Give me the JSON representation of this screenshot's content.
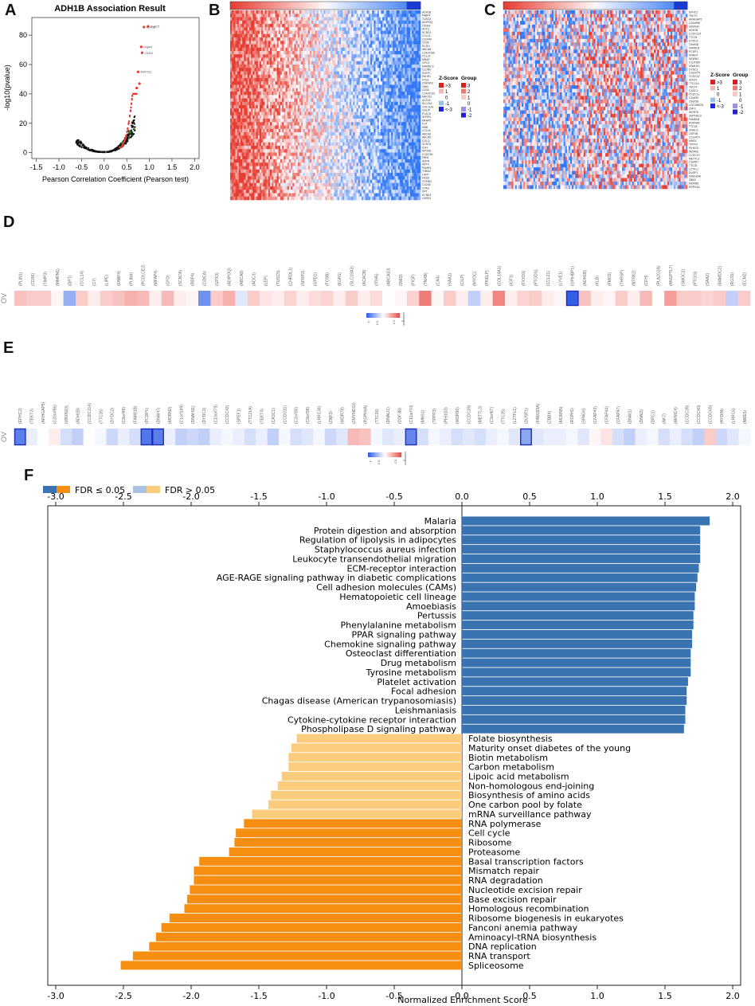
{
  "panels": {
    "a": "A",
    "b": "B",
    "c": "C",
    "d": "D",
    "e": "E",
    "f": "F"
  },
  "colors": {
    "red": "#e8332a",
    "blue": "#1a3bd6",
    "heat_red": "#e74b3c",
    "heat_blue": "#3b6fd4",
    "fdr_sig_pos": "#3a73b1",
    "fdr_sig_neg": "#f68e12",
    "fdr_ns_pos": "#a7c1e0",
    "fdr_ns_neg": "#fbcc7d"
  },
  "volcano": {
    "title": "ADH1B Association Result",
    "xlabel": "Pearson Correlation Coefficient (Pearson test)",
    "ylabel": "-log10(pvalue)",
    "xticks": [
      "-1.5",
      "-1.0",
      "-0.5",
      "0.0",
      "0.5",
      "1.0",
      "1.5",
      "2.0"
    ],
    "yticks": [
      "0",
      "20",
      "40",
      "60",
      "80"
    ],
    "point_labels": [
      "ADH1B",
      "TUSC5",
      "FABP4",
      "CIDEA",
      "ADIPOQ"
    ]
  },
  "heatmap_b": {
    "genes": [
      "ADH1B",
      "FABP4",
      "TUSC5",
      "ADIPOQ",
      "CIDEA",
      "AOC3",
      "SCRG1",
      "CCL14",
      "C2orf40",
      "CD36",
      "PCDH",
      "ABCA8",
      "C14orf180",
      "CCL21",
      "MRAP",
      "GPC3",
      "MAMDC2",
      "CLDN5",
      "SVEP1",
      "PAHR1",
      "FXS1",
      "CNKSR3",
      "OMD",
      "CD34",
      "C14orf132",
      "MEOX2",
      "ACTA2",
      "SLC2A4",
      "COL11A1",
      "GSLIP",
      "PLAC8",
      "SFRP4",
      "MFAP5",
      "FLR",
      "HBB",
      "CCL18",
      "ABCA6",
      "ABCA9",
      "COLQ",
      "SCN7A",
      "IGF1",
      "APOA5",
      "CCDC80",
      "FBN1",
      "ASPN",
      "ART4",
      "PAMR1",
      "THBS2",
      "LHFP",
      "FRZB",
      "TGFBI3",
      "CD248",
      "CPA3",
      "DPT",
      "KCNE4",
      "LMOD1"
    ],
    "legend_zscore_title": "Z-Score",
    "legend_group_title": "Group",
    "legend_zscore": [
      ">3",
      "1",
      "0",
      "-1",
      "<-3"
    ],
    "legend_group": [
      "3",
      "2",
      "1",
      "0",
      "-1",
      "-2"
    ]
  },
  "heatmap_c": {
    "genes": [
      "EFHC2",
      "TEKT2",
      "ARHGAP5",
      "C20orf96",
      "UBXN10",
      "ADH1B",
      "CCDC114",
      "TTC26",
      "DYDC2",
      "C9orf48",
      "FAM81B",
      "PCDP1",
      "DNAH7",
      "MORN2",
      "C1orf189",
      "DNAH11",
      "DYDC1",
      "C10orf79",
      "CCDC42",
      "SPEF1",
      "TTC21A",
      "TEKT4",
      "CASC1",
      "CCDC11",
      "C2orf30",
      "C9orf38",
      "LOC285076",
      "ZNF3",
      "WDR78",
      "ZMYND10",
      "FAM81B",
      "RSPH4A",
      "TTC18",
      "DNALI1",
      "ODF3B",
      "C11orf70",
      "MNS1",
      "TPPP3",
      "PIH1D3",
      "WDR96",
      "CCDC19",
      "METTL3",
      "C3orf67",
      "TTC25",
      "LZTFL1",
      "DUSP1",
      "FAM183A",
      "ZBBX",
      "MORN5",
      "RSPH1A"
    ],
    "legend_zscore_title": "Z-Score",
    "legend_group_title": "Group",
    "legend_zscore": [
      ">3",
      "1",
      "0",
      "-1",
      "<-3"
    ],
    "legend_group": [
      "3",
      "2",
      "1",
      "0",
      "-1",
      "-2"
    ]
  },
  "strip_d": {
    "row_label": "OV",
    "legend_title": "correlation",
    "legend_ticks": [
      "-1",
      "-0.5",
      "0",
      "0.5",
      "1"
    ],
    "genes": [
      "PLIN1",
      "CD36",
      "TIMP3",
      "MMRN1",
      "DPT",
      "CCL14",
      "C7",
      "LIPE",
      "FABP4",
      "PLIN4",
      "PCOLCE2",
      "MFAP4",
      "CFD",
      "SCN7A",
      "RBP4",
      "CIDEA",
      "GPX3",
      "ADIPOQ",
      "ABCA8",
      "AOC3",
      "LEP",
      "TUSC5",
      "CHRDL1",
      "SFRP2",
      "GPD1",
      "FOSB",
      "EGR1",
      "SLC19A3",
      "ACACB",
      "ITIH5",
      "ABCA10",
      "DMD",
      "FIGF",
      "TNXB",
      "CA4",
      "SAA1",
      "CILP",
      "MYOC",
      "PRELP",
      "COL14A1",
      "IGF1",
      "FXYD1",
      "PTGDS",
      "CCL21",
      "LYVE1",
      "GPIHBP1",
      "ADH1B",
      "KLB",
      "FMO2",
      "THRSP",
      "NTRK2",
      "CFH",
      "PLA2G2A",
      "ANGPTL7",
      "SMOC2",
      "PTGIS",
      "SAA2",
      "MAMDC2",
      "RGS5",
      "ECM2"
    ],
    "values": [
      0.35,
      0.3,
      0.3,
      0.05,
      -0.5,
      0.3,
      0.1,
      0.3,
      0.35,
      0.45,
      0.4,
      0.1,
      0.4,
      0.1,
      0.05,
      -0.7,
      0.3,
      0.45,
      -0.15,
      0.3,
      0.15,
      0.1,
      0.25,
      0.1,
      0.2,
      0.25,
      0.1,
      0.3,
      0.1,
      0.2,
      0.0,
      0.05,
      0.25,
      0.75,
      0.05,
      0.3,
      0.1,
      -0.3,
      0.1,
      0.7,
      0.1,
      0.25,
      0.3,
      0.1,
      0.05,
      -1.0,
      0.35,
      0.1,
      0.05,
      0.3,
      0.1,
      0.4,
      0.0,
      0.55,
      0.3,
      0.3,
      0.25,
      0.3,
      -0.3,
      0.3
    ],
    "highlighted_index": 45
  },
  "strip_e": {
    "row_label": "OV",
    "legend_title": "correlation",
    "legend_ticks": [
      "-1",
      "-0.5",
      "0",
      "0.5",
      "1"
    ],
    "genes": [
      "EFHC2",
      "TEKT2",
      "ARHGAP5",
      "C20orf96",
      "UBXN10",
      "ADH1B",
      "CCDC114",
      "TTC26",
      "DYDC2",
      "C9orf48",
      "FAM81B",
      "PCDP1",
      "DNAH7",
      "MORN2",
      "C1orf189",
      "DNAH11",
      "DYDC1",
      "C10orf79",
      "CCDC42",
      "SPEF1",
      "TTC21A",
      "TEKT4",
      "CASC1",
      "CCDC11",
      "C2orf30",
      "C9orf38",
      "LRRC34",
      "ZNF3",
      "WDR78",
      "ZMYND10",
      "RSPH4A",
      "TTC18",
      "DNALI1",
      "ODF3B",
      "C11orf70",
      "MNS1",
      "TPPP3",
      "PIH1D3",
      "WDR96",
      "CCDC19",
      "METTL3",
      "C3orf67",
      "TTC25",
      "LZTFL1",
      "DUSP1",
      "FAM183A",
      "ZBBX",
      "MORN5",
      "RSPH1",
      "SPAG6",
      "CFAP43",
      "CFAP44",
      "CFAP47",
      "DNAI1",
      "DNAI2",
      "DRC1",
      "AK7",
      "ARMC4",
      "CCDC39",
      "CCDC40",
      "CCDC65",
      "HYDIN",
      "LRRC6",
      "NME5"
    ],
    "values": [
      -0.8,
      -0.1,
      0.0,
      0.1,
      -0.2,
      -0.3,
      0.0,
      -0.05,
      -0.25,
      -0.1,
      -0.2,
      -0.85,
      -0.8,
      -0.1,
      -0.3,
      -0.25,
      -0.3,
      -0.1,
      -0.05,
      -0.1,
      -0.2,
      -0.1,
      -0.3,
      -0.05,
      -0.2,
      -0.15,
      -0.05,
      -0.25,
      -0.15,
      0.4,
      0.35,
      -0.05,
      -0.15,
      -0.1,
      -0.75,
      -0.2,
      -0.05,
      -0.1,
      -0.2,
      -0.15,
      -0.2,
      -0.1,
      -0.05,
      -0.15,
      -0.55,
      -0.15,
      -0.1,
      -0.1,
      -0.05,
      -0.15,
      0.05,
      0.15,
      -0.2,
      -0.3,
      -0.1,
      -0.05,
      -0.2,
      -0.1,
      -0.2,
      -0.3,
      0.3,
      -0.25,
      -0.15,
      -0.05
    ],
    "highlighted_indices": [
      0,
      11,
      12,
      34,
      44
    ]
  },
  "chart_data": {
    "type": "bar",
    "orientation": "horizontal",
    "title": "",
    "xlabel": "Normalized Enrichment Score",
    "ylabel": "",
    "xlim": [
      -3.0,
      2.0
    ],
    "xticks": [
      "-3.0",
      "-2.5",
      "-2.0",
      "-1.5",
      "-1.0",
      "-0.5",
      "0.0",
      "0.5",
      "1.0",
      "1.5",
      "2.0"
    ],
    "legend": [
      {
        "label": "FDR ≤ 0.05",
        "colors": [
          "#3a73b1",
          "#f68e12"
        ]
      },
      {
        "label": "FDR > 0.05",
        "colors": [
          "#a7c1e0",
          "#fbcc7d"
        ]
      }
    ],
    "categories": [
      "Malaria",
      "Protein digestion and absorption",
      "Regulation of lipolysis in adipocytes",
      "Staphylococcus aureus infection",
      "Leukocyte transendothelial migration",
      "ECM-receptor interaction",
      "AGE-RAGE signaling pathway in diabetic complications",
      "Cell adhesion molecules (CAMs)",
      "Hematopoietic cell lineage",
      "Amoebiasis",
      "Pertussis",
      "Phenylalanine metabolism",
      "PPAR signaling pathway",
      "Chemokine signaling pathway",
      "Osteoclast differentiation",
      "Drug metabolism",
      "Tyrosine metabolism",
      "Platelet activation",
      "Focal adhesion",
      "Chagas disease (American trypanosomiasis)",
      "Leishmaniasis",
      "Cytokine-cytokine receptor interaction",
      "Phospholipase D signaling pathway",
      "Folate biosynthesis",
      "Maturity onset diabetes of the young",
      "Biotin metabolism",
      "Carbon metabolism",
      "Lipoic acid metabolism",
      "Non-homologous end-joining",
      "Biosynthesis of amino acids",
      "One carbon pool by folate",
      "mRNA surveillance pathway",
      "RNA polymerase",
      "Cell cycle",
      "Ribosome",
      "Proteasome",
      "Basal transcription factors",
      "Mismatch repair",
      "RNA degradation",
      "Nucleotide excision repair",
      "Base excision repair",
      "Homologous recombination",
      "Ribosome biogenesis in eukaryotes",
      "Fanconi anemia pathway",
      "Aminoacyl-tRNA biosynthesis",
      "DNA replication",
      "RNA transport",
      "Spliceosome"
    ],
    "values": [
      1.83,
      1.76,
      1.76,
      1.76,
      1.76,
      1.75,
      1.74,
      1.73,
      1.72,
      1.72,
      1.71,
      1.71,
      1.7,
      1.7,
      1.69,
      1.69,
      1.69,
      1.67,
      1.66,
      1.66,
      1.65,
      1.65,
      1.64,
      -1.22,
      -1.26,
      -1.28,
      -1.28,
      -1.33,
      -1.36,
      -1.41,
      -1.43,
      -1.55,
      -1.61,
      -1.67,
      -1.68,
      -1.72,
      -1.94,
      -1.98,
      -1.98,
      -2.01,
      -2.03,
      -2.05,
      -2.16,
      -2.22,
      -2.26,
      -2.31,
      -2.43,
      -2.52
    ],
    "fdr_significant": [
      true,
      true,
      true,
      true,
      true,
      true,
      true,
      true,
      true,
      true,
      true,
      true,
      true,
      true,
      true,
      true,
      true,
      true,
      true,
      true,
      true,
      true,
      true,
      false,
      false,
      false,
      false,
      false,
      false,
      false,
      false,
      false,
      true,
      true,
      true,
      true,
      true,
      true,
      true,
      true,
      true,
      true,
      true,
      true,
      true,
      true,
      true,
      true
    ]
  }
}
